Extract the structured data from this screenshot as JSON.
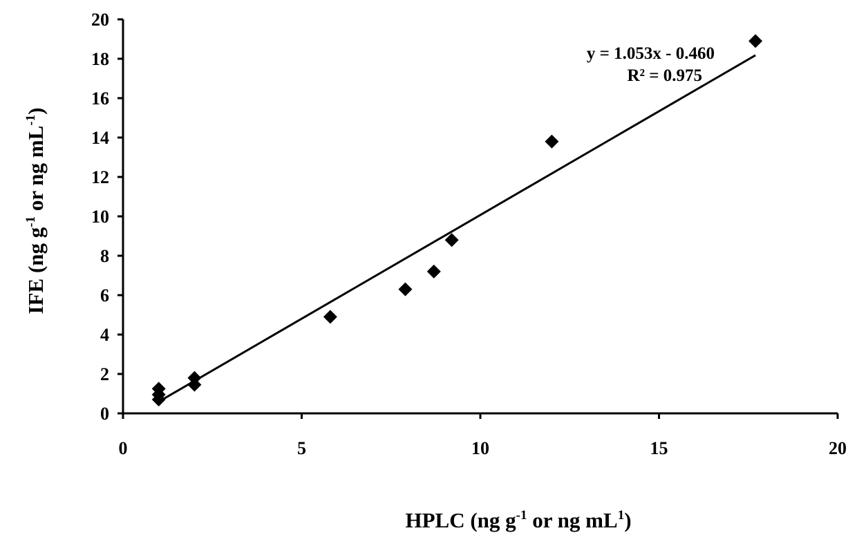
{
  "chart_data": {
    "type": "scatter",
    "title": "",
    "xlabel": "HPLC (ng g-1 or ng mL1)",
    "ylabel": "IFE (ng g-1 or ng mL-1)",
    "xlabel_parts": {
      "pre": "HPLC (ng g",
      "sup1": "-1",
      "mid": " or ng mL",
      "sup2": "1",
      "post": ")"
    },
    "ylabel_parts": {
      "pre": "IFE (ng g",
      "sup1": "-1",
      "mid": " or ng mL",
      "sup2": "-1",
      "post": ")"
    },
    "xlim": [
      0,
      20
    ],
    "ylim": [
      0,
      20
    ],
    "xticks": [
      "0",
      "5",
      "10",
      "15",
      "20"
    ],
    "yticks": [
      "0",
      "2",
      "4",
      "6",
      "8",
      "10",
      "12",
      "14",
      "16",
      "18",
      "20"
    ],
    "grid": false,
    "legend": "none",
    "marker": "diamond",
    "color": "#000000",
    "points": [
      {
        "x": 1.0,
        "y": 1.25
      },
      {
        "x": 1.0,
        "y": 0.95
      },
      {
        "x": 1.0,
        "y": 0.7
      },
      {
        "x": 2.0,
        "y": 1.8
      },
      {
        "x": 2.0,
        "y": 1.45
      },
      {
        "x": 5.8,
        "y": 4.9
      },
      {
        "x": 7.9,
        "y": 6.3
      },
      {
        "x": 8.7,
        "y": 7.2
      },
      {
        "x": 9.2,
        "y": 8.8
      },
      {
        "x": 12.0,
        "y": 13.8
      },
      {
        "x": 17.7,
        "y": 18.9
      }
    ],
    "trendline": {
      "slope": 1.053,
      "intercept": -0.46,
      "x_range": [
        1.0,
        17.7
      ],
      "equation": "y = 1.053x - 0.460",
      "r2_label": "R² = 0.975"
    }
  }
}
